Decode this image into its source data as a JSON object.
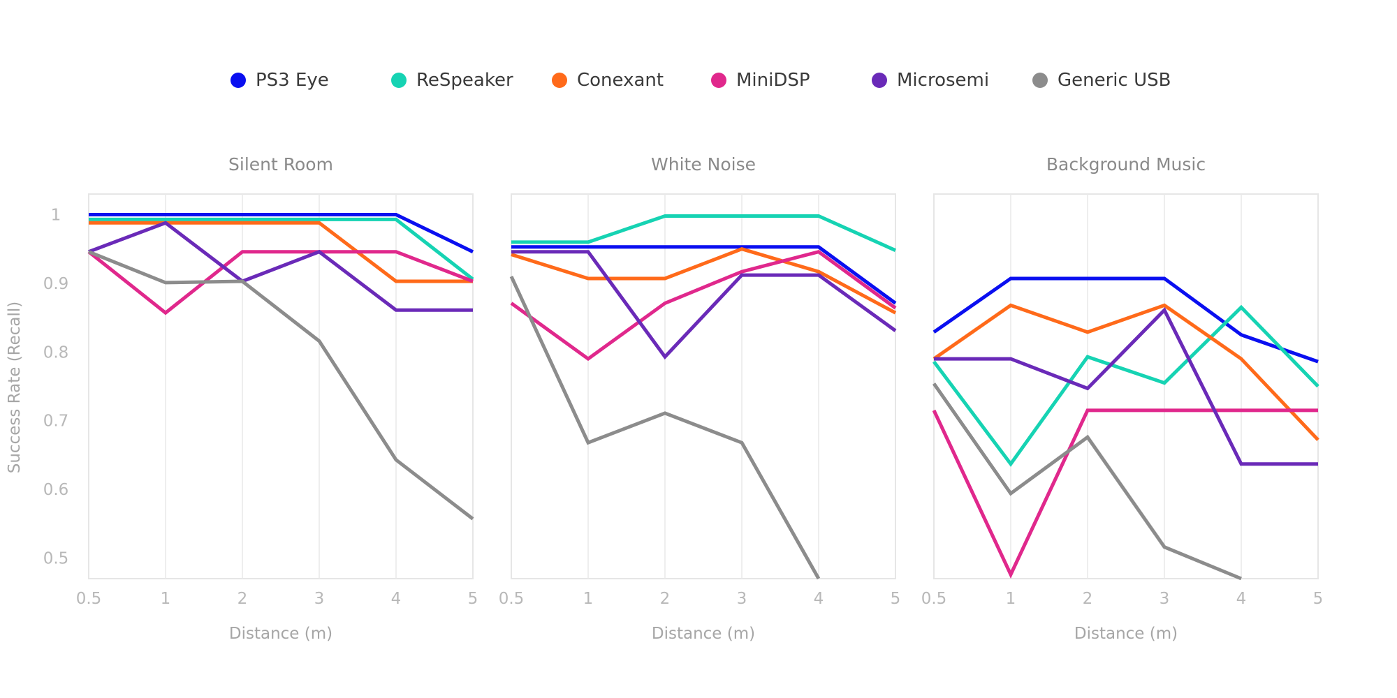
{
  "chart_data": {
    "type": "line",
    "ylabel": "Success Rate (Recall)",
    "xlabel": "Distance (m)",
    "x_ticks": [
      "0.5",
      "1",
      "2",
      "3",
      "4",
      "5"
    ],
    "y_ticks": [
      "0.5",
      "0.6",
      "0.7",
      "0.8",
      "0.9",
      "1"
    ],
    "ylim": [
      0.47,
      1.03
    ],
    "grid": "vertical",
    "legend_position": "top",
    "legend": [
      {
        "name": "PS3 Eye",
        "color": "#0a0ff0"
      },
      {
        "name": "ReSpeaker",
        "color": "#16d3b3"
      },
      {
        "name": "Conexant",
        "color": "#ff6a1a"
      },
      {
        "name": "MiniDSP",
        "color": "#e0288c"
      },
      {
        "name": "Microsemi",
        "color": "#6a2ab8"
      },
      {
        "name": "Generic USB",
        "color": "#8c8c8c"
      }
    ],
    "panels": [
      {
        "title": "Silent Room",
        "series": [
          {
            "name": "PS3 Eye",
            "color": "#0a0ff0",
            "values": [
              1.0,
              1.0,
              1.0,
              1.0,
              1.0,
              0.946
            ]
          },
          {
            "name": "ReSpeaker",
            "color": "#16d3b3",
            "values": [
              0.993,
              0.993,
              0.993,
              0.993,
              0.993,
              0.906
            ]
          },
          {
            "name": "Conexant",
            "color": "#ff6a1a",
            "values": [
              0.988,
              0.988,
              0.988,
              0.988,
              0.903,
              0.903
            ]
          },
          {
            "name": "MiniDSP",
            "color": "#e0288c",
            "values": [
              0.946,
              0.857,
              0.946,
              0.946,
              0.946,
              0.903
            ]
          },
          {
            "name": "Microsemi",
            "color": "#6a2ab8",
            "values": [
              0.946,
              0.988,
              0.903,
              0.946,
              0.861,
              0.861
            ]
          },
          {
            "name": "Generic USB",
            "color": "#8c8c8c",
            "values": [
              0.946,
              0.901,
              0.903,
              0.816,
              0.643,
              0.557
            ]
          }
        ]
      },
      {
        "title": "White Noise",
        "series": [
          {
            "name": "PS3 Eye",
            "color": "#0a0ff0",
            "values": [
              0.953,
              0.953,
              0.953,
              0.953,
              0.953,
              0.871
            ]
          },
          {
            "name": "ReSpeaker",
            "color": "#16d3b3",
            "values": [
              0.96,
              0.96,
              0.998,
              0.998,
              0.998,
              0.948
            ]
          },
          {
            "name": "Conexant",
            "color": "#ff6a1a",
            "values": [
              0.942,
              0.907,
              0.907,
              0.95,
              0.917,
              0.857
            ]
          },
          {
            "name": "MiniDSP",
            "color": "#e0288c",
            "values": [
              0.871,
              0.79,
              0.871,
              0.917,
              0.946,
              0.864
            ]
          },
          {
            "name": "Microsemi",
            "color": "#6a2ab8",
            "values": [
              0.946,
              0.946,
              0.793,
              0.912,
              0.912,
              0.831
            ]
          },
          {
            "name": "Generic USB",
            "color": "#8c8c8c",
            "values": [
              0.91,
              0.668,
              0.711,
              0.668,
              0.47,
              null
            ]
          }
        ]
      },
      {
        "title": "Background Music",
        "series": [
          {
            "name": "PS3 Eye",
            "color": "#0a0ff0",
            "values": [
              0.829,
              0.907,
              0.907,
              0.907,
              0.825,
              0.786
            ]
          },
          {
            "name": "ReSpeaker",
            "color": "#16d3b3",
            "values": [
              0.786,
              0.637,
              0.793,
              0.755,
              0.865,
              0.75
            ]
          },
          {
            "name": "Conexant",
            "color": "#ff6a1a",
            "values": [
              0.79,
              0.868,
              0.829,
              0.868,
              0.79,
              0.672
            ]
          },
          {
            "name": "MiniDSP",
            "color": "#e0288c",
            "values": [
              0.715,
              0.476,
              0.715,
              0.715,
              0.715,
              0.715
            ]
          },
          {
            "name": "Microsemi",
            "color": "#6a2ab8",
            "values": [
              0.79,
              0.79,
              0.747,
              0.861,
              0.637,
              0.637
            ]
          },
          {
            "name": "Generic USB",
            "color": "#8c8c8c",
            "values": [
              0.754,
              0.594,
              0.676,
              0.516,
              0.47,
              null
            ]
          }
        ]
      }
    ]
  }
}
